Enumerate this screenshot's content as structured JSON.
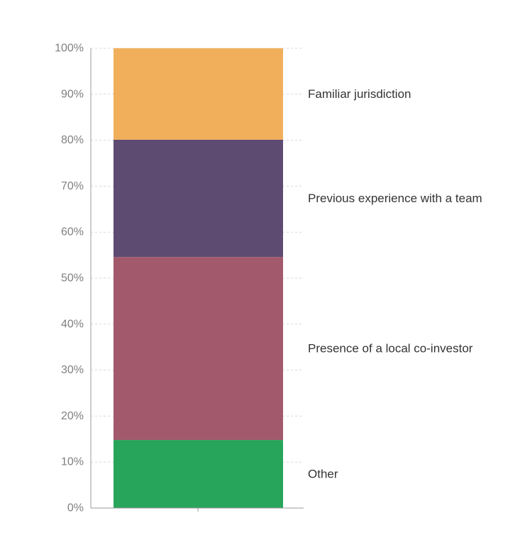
{
  "chart_data": {
    "type": "bar",
    "stacked": true,
    "normalized": true,
    "categories": [
      ""
    ],
    "series": [
      {
        "name": "Other",
        "values": [
          14.8
        ],
        "color": "#27a55b"
      },
      {
        "name": "Presence of a local co-investor",
        "values": [
          39.8
        ],
        "color": "#a2596b"
      },
      {
        "name": "Previous experience with a team",
        "values": [
          25.5
        ],
        "color": "#5d4b72"
      },
      {
        "name": "Familiar jurisdiction",
        "values": [
          19.9
        ],
        "color": "#f1af5c"
      }
    ],
    "ylim": [
      0,
      100
    ],
    "yticks": [
      "0%",
      "10%",
      "20%",
      "30%",
      "40%",
      "50%",
      "60%",
      "70%",
      "80%",
      "90%",
      "100%"
    ],
    "grid": true,
    "legend": "inline-right"
  }
}
